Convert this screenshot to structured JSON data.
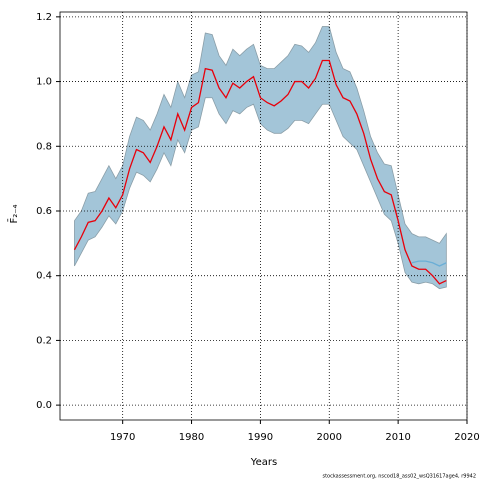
{
  "chart_data": {
    "type": "line",
    "x_label": "Years",
    "y_label": "F̄₂₋₄",
    "caption": "stockassessment.org, nscod18_ass02_wsQ31617age4, r9942",
    "x": [
      1963,
      1964,
      1965,
      1966,
      1967,
      1968,
      1969,
      1970,
      1971,
      1972,
      1973,
      1974,
      1975,
      1976,
      1977,
      1978,
      1979,
      1980,
      1981,
      1982,
      1983,
      1984,
      1985,
      1986,
      1987,
      1988,
      1989,
      1990,
      1991,
      1992,
      1993,
      1994,
      1995,
      1996,
      1997,
      1998,
      1999,
      2000,
      2001,
      2002,
      2003,
      2004,
      2005,
      2006,
      2007,
      2008,
      2009,
      2010,
      2011,
      2012,
      2013,
      2014,
      2015,
      2016,
      2017
    ],
    "band": {
      "color": "#a3c5d8",
      "edge": "#8a9ea8",
      "upper": [
        0.57,
        0.6,
        0.655,
        0.66,
        0.7,
        0.74,
        0.7,
        0.74,
        0.83,
        0.89,
        0.88,
        0.85,
        0.9,
        0.96,
        0.92,
        1.0,
        0.95,
        1.02,
        1.03,
        1.15,
        1.145,
        1.08,
        1.05,
        1.1,
        1.08,
        1.1,
        1.115,
        1.05,
        1.04,
        1.04,
        1.06,
        1.08,
        1.115,
        1.11,
        1.09,
        1.12,
        1.17,
        1.17,
        1.09,
        1.04,
        1.03,
        0.98,
        0.91,
        0.83,
        0.78,
        0.745,
        0.74,
        0.65,
        0.56,
        0.53,
        0.52,
        0.52,
        0.51,
        0.5,
        0.53
      ],
      "lower": [
        0.43,
        0.47,
        0.51,
        0.52,
        0.55,
        0.585,
        0.56,
        0.6,
        0.67,
        0.72,
        0.71,
        0.69,
        0.73,
        0.78,
        0.74,
        0.82,
        0.78,
        0.85,
        0.86,
        0.95,
        0.95,
        0.9,
        0.87,
        0.91,
        0.9,
        0.92,
        0.93,
        0.87,
        0.85,
        0.84,
        0.84,
        0.855,
        0.88,
        0.88,
        0.87,
        0.9,
        0.93,
        0.93,
        0.88,
        0.83,
        0.81,
        0.79,
        0.74,
        0.69,
        0.64,
        0.59,
        0.57,
        0.5,
        0.41,
        0.38,
        0.375,
        0.38,
        0.375,
        0.36,
        0.365
      ]
    },
    "series": [
      {
        "color": "#e8000b",
        "values": [
          0.48,
          0.52,
          0.565,
          0.57,
          0.6,
          0.64,
          0.61,
          0.65,
          0.73,
          0.79,
          0.78,
          0.75,
          0.8,
          0.86,
          0.82,
          0.9,
          0.85,
          0.92,
          0.935,
          1.04,
          1.035,
          0.98,
          0.95,
          0.995,
          0.98,
          1.0,
          1.015,
          0.95,
          0.935,
          0.925,
          0.94,
          0.96,
          1.0,
          1.0,
          0.98,
          1.01,
          1.065,
          1.065,
          0.99,
          0.95,
          0.94,
          0.9,
          0.84,
          0.76,
          0.7,
          0.66,
          0.65,
          0.57,
          0.48,
          0.43,
          0.42,
          0.42,
          0.4,
          0.375,
          0.385
        ]
      },
      {
        "color": "#6aaed6",
        "values": [
          null,
          null,
          null,
          null,
          null,
          null,
          null,
          null,
          null,
          null,
          null,
          null,
          null,
          null,
          null,
          null,
          null,
          null,
          null,
          null,
          null,
          null,
          null,
          null,
          null,
          null,
          null,
          null,
          null,
          null,
          null,
          null,
          null,
          null,
          null,
          null,
          null,
          null,
          null,
          null,
          null,
          null,
          null,
          null,
          null,
          null,
          null,
          null,
          null,
          0.44,
          0.445,
          0.445,
          0.44,
          0.43,
          0.44
        ]
      }
    ],
    "xlim": [
      1960.9,
      2020
    ],
    "ylim": [
      -0.046,
      1.215
    ],
    "xticks": [
      1970,
      1980,
      1990,
      2000,
      2010,
      2020
    ],
    "yticks": [
      {
        "value": 0,
        "label": "0.0"
      },
      0.2,
      0.4,
      0.6,
      0.8,
      {
        "value": 1,
        "label": "1.0"
      },
      1.2
    ],
    "grid": true
  }
}
